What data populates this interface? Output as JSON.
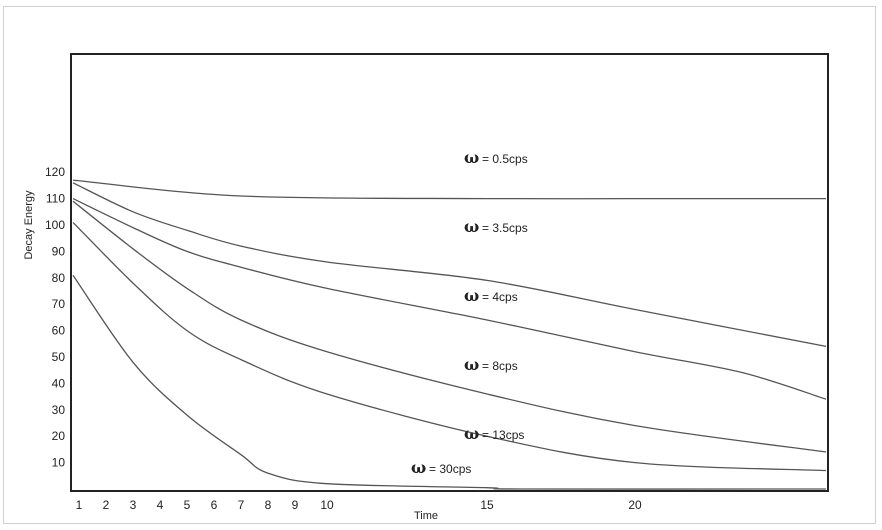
{
  "chart_data": {
    "type": "line",
    "title": "",
    "xlabel": "Time",
    "ylabel": "Decay Energy",
    "x_ticks": [
      "1",
      "2",
      "3",
      "4",
      "5",
      "6",
      "7",
      "8",
      "9",
      "10",
      "15",
      "20"
    ],
    "y_ticks": [
      "10",
      "20",
      "30",
      "40",
      "50",
      "60",
      "70",
      "80",
      "90",
      "100",
      "110",
      "120"
    ],
    "grid": false,
    "legend": "none",
    "series": [
      {
        "name": "= 0.5cps",
        "x": [
          0.8,
          7,
          15,
          20,
          25
        ],
        "values": [
          117,
          111,
          110,
          110,
          110
        ]
      },
      {
        "name": "= 3.5cps",
        "x": [
          0.8,
          3,
          5,
          7,
          10,
          15,
          20,
          25
        ],
        "values": [
          116,
          105,
          98,
          92,
          86,
          79,
          68,
          54
        ]
      },
      {
        "name": "= 4cps",
        "x": [
          0.8,
          3,
          5,
          7,
          10,
          15,
          20,
          23,
          25
        ],
        "values": [
          110,
          99,
          90,
          84,
          76,
          64,
          52,
          44,
          34
        ]
      },
      {
        "name": "= 8cps",
        "x": [
          0.8,
          3,
          5,
          7,
          10,
          15,
          20,
          25
        ],
        "values": [
          109,
          91,
          76,
          64,
          52,
          36,
          24,
          14
        ]
      },
      {
        "name": "= 13cps",
        "x": [
          0.8,
          3,
          5,
          7,
          10,
          15,
          20,
          25
        ],
        "values": [
          101,
          78,
          60,
          49,
          36,
          20,
          10,
          7
        ]
      },
      {
        "name": "= 30cps",
        "x": [
          0.8,
          3,
          5,
          7,
          8,
          10,
          15,
          16,
          25
        ],
        "values": [
          81,
          48,
          28,
          13,
          6,
          2,
          0.5,
          0,
          0
        ]
      }
    ],
    "colors": {
      "line": "#555555",
      "axis": "#222222"
    }
  }
}
